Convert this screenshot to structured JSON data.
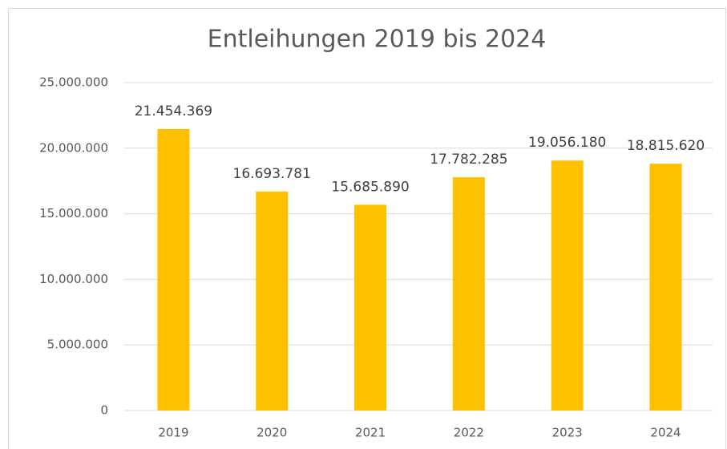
{
  "chart_data": {
    "type": "bar",
    "title": "Entleihungen 2019 bis 2024",
    "categories": [
      "2019",
      "2020",
      "2021",
      "2022",
      "2023",
      "2024"
    ],
    "values": [
      21454369,
      16693781,
      15685890,
      17782285,
      19056180,
      18815620
    ],
    "value_labels": [
      "21.454.369",
      "16.693.781",
      "15.685.890",
      "17.782.285",
      "19.056.180",
      "18.815.620"
    ],
    "color": "#ffc000",
    "ylim": [
      0,
      25000000
    ],
    "yticks": [
      0,
      {
        "value": 5000000,
        "label": "5.000.000"
      },
      {
        "value": 10000000,
        "label": "10.000.000"
      },
      {
        "value": 15000000,
        "label": "15.000.000"
      },
      {
        "value": 20000000,
        "label": "20.000.000"
      },
      {
        "value": 25000000,
        "label": "25.000.000"
      }
    ],
    "grid": true
  }
}
